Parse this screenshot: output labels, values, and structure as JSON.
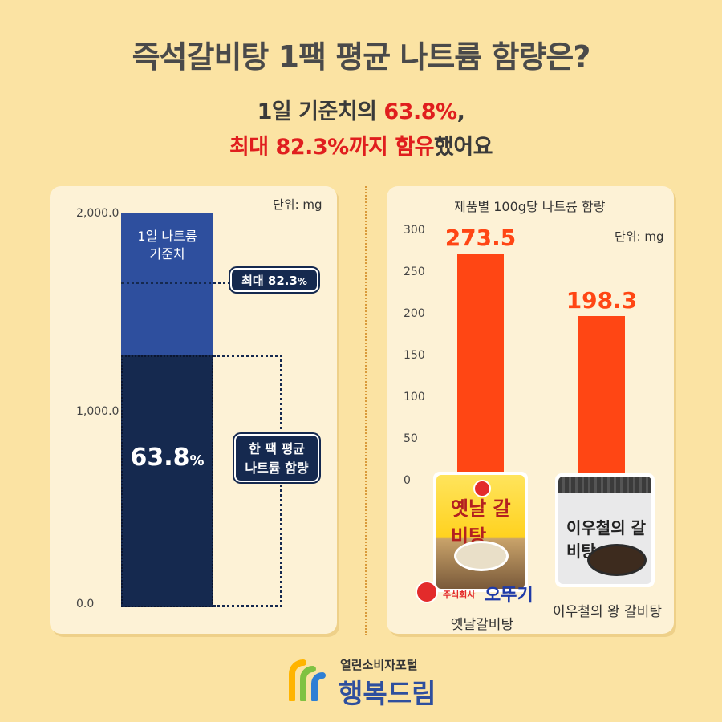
{
  "header": {
    "title": "즉석갈비탕 1팩 평균 나트륨 함량은?",
    "subtitle_line1_pre": "1일 기준치의 ",
    "subtitle_line1_red": "63.8%",
    "subtitle_line1_post": ",",
    "subtitle_line2_red1": "최대 82.3%까지 ",
    "subtitle_line2_red2": "함유",
    "subtitle_line2_post": "했어요"
  },
  "left_chart": {
    "unit": "단위: mg",
    "y_ticks": [
      "2,000.0",
      "1,000.0",
      "0.0"
    ],
    "daily_label_1": "1일 나트륨",
    "daily_label_2": "기준치",
    "avg_pct": "63.8",
    "avg_pct_suffix": "%",
    "max_pill_main": "최대 82.3",
    "max_pill_suffix": "%",
    "avg_pill_line1": "한 팩 평균",
    "avg_pill_line2": "나트륨 함량"
  },
  "right_chart": {
    "title": "제품별 100g당 나트륨 함량",
    "unit": "단위: mg",
    "y_ticks": [
      "300",
      "250",
      "200",
      "150",
      "100",
      "50",
      "0"
    ],
    "product1": "옛날갈비탕",
    "product2": "이우철의 왕 갈비탕",
    "brand_co": "주식회사",
    "brand_name": "오뚜기",
    "pack1_text": "옛날 갈비탕",
    "pack2_text": "이우철의 갈비탕"
  },
  "chart_data": [
    {
      "type": "bar",
      "categories": [
        "1일 나트륨 기준치",
        "한 팩 평균 나트륨 함량"
      ],
      "values": [
        2000,
        1276
      ],
      "ylim": [
        0,
        2000
      ],
      "ylabel": "단위: mg",
      "annotations": [
        "63.8%",
        "최대 82.3%"
      ],
      "reference_max": 1646
    },
    {
      "type": "bar",
      "title": "제품별 100g당 나트륨 함량",
      "categories": [
        "옛날갈비탕",
        "이우철의 왕 갈비탕"
      ],
      "values": [
        273.5,
        198.3
      ],
      "ylim": [
        0,
        300
      ],
      "ylabel": "단위: mg",
      "color": "#ff4614"
    }
  ],
  "footer": {
    "org_line": "열린소비자포털",
    "org_name": "행복드림"
  },
  "colors": {
    "background": "#fbe3a3",
    "accent_red": "#e01e1e",
    "bar_orange": "#ff4614",
    "navy": "#15294f",
    "blue": "#2e4f9e"
  }
}
